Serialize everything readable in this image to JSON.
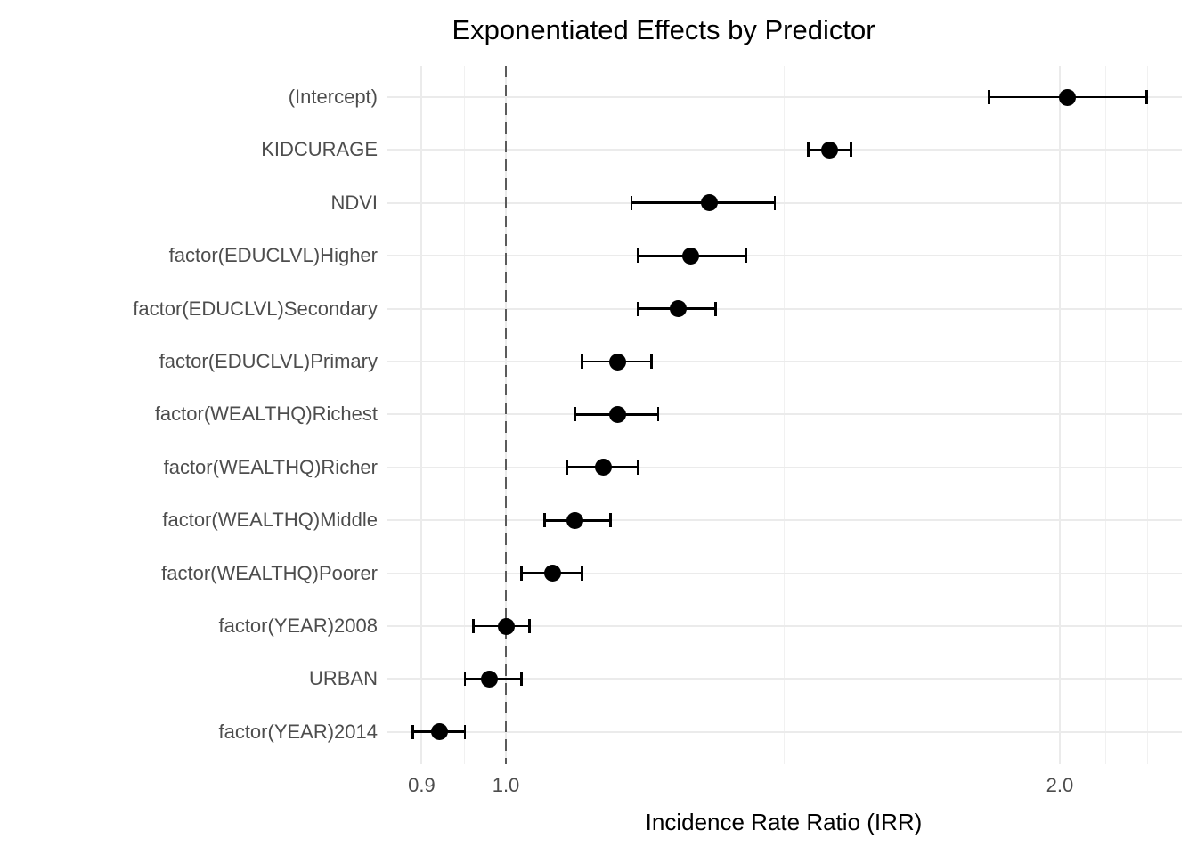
{
  "chart_data": {
    "type": "scatter",
    "subtype": "forest-pointrange",
    "title": "Exponentiated Effects by Predictor",
    "xlabel": "Incidence Rate Ratio (IRR)",
    "ylabel": "",
    "x_scale": "log10",
    "xlim": [
      0.86,
      2.33
    ],
    "x_ticks": [
      0.9,
      1.0,
      2.0
    ],
    "x_tick_labels": [
      "0.9",
      "1.0",
      "2.0"
    ],
    "x_minor_breaks": [
      0.95,
      1.417,
      2.118,
      2.233
    ],
    "reference_line": 1.0,
    "grid": "on",
    "legend": "none",
    "rows": [
      {
        "label": "(Intercept)",
        "irr": 2.02,
        "ci_low": 1.83,
        "ci_high": 2.23
      },
      {
        "label": "KIDCURAGE",
        "irr": 1.5,
        "ci_low": 1.46,
        "ci_high": 1.54
      },
      {
        "label": "NDVI",
        "irr": 1.29,
        "ci_low": 1.17,
        "ci_high": 1.4
      },
      {
        "label": "factor(EDUCLVL)Higher",
        "irr": 1.26,
        "ci_low": 1.18,
        "ci_high": 1.35
      },
      {
        "label": "factor(EDUCLVL)Secondary",
        "irr": 1.24,
        "ci_low": 1.18,
        "ci_high": 1.3
      },
      {
        "label": "factor(EDUCLVL)Primary",
        "irr": 1.15,
        "ci_low": 1.1,
        "ci_high": 1.2
      },
      {
        "label": "factor(WEALTHQ)Richest",
        "irr": 1.15,
        "ci_low": 1.09,
        "ci_high": 1.21
      },
      {
        "label": "factor(WEALTHQ)Richer",
        "irr": 1.13,
        "ci_low": 1.08,
        "ci_high": 1.18
      },
      {
        "label": "factor(WEALTHQ)Middle",
        "irr": 1.09,
        "ci_low": 1.05,
        "ci_high": 1.14
      },
      {
        "label": "factor(WEALTHQ)Poorer",
        "irr": 1.06,
        "ci_low": 1.02,
        "ci_high": 1.1
      },
      {
        "label": "factor(YEAR)2008",
        "irr": 1.0,
        "ci_low": 0.96,
        "ci_high": 1.03
      },
      {
        "label": "URBAN",
        "irr": 0.98,
        "ci_low": 0.95,
        "ci_high": 1.02
      },
      {
        "label": "factor(YEAR)2014",
        "irr": 0.92,
        "ci_low": 0.89,
        "ci_high": 0.95
      }
    ],
    "colors": {
      "point": "#000000",
      "error_bar": "#000000",
      "reference_line": "#5b5b5b",
      "grid_major": "#ebebeb",
      "grid_minor": "#f1f1f1",
      "axis_text": "#4d4d4d",
      "title_text": "#000000",
      "background": "#ffffff"
    }
  }
}
